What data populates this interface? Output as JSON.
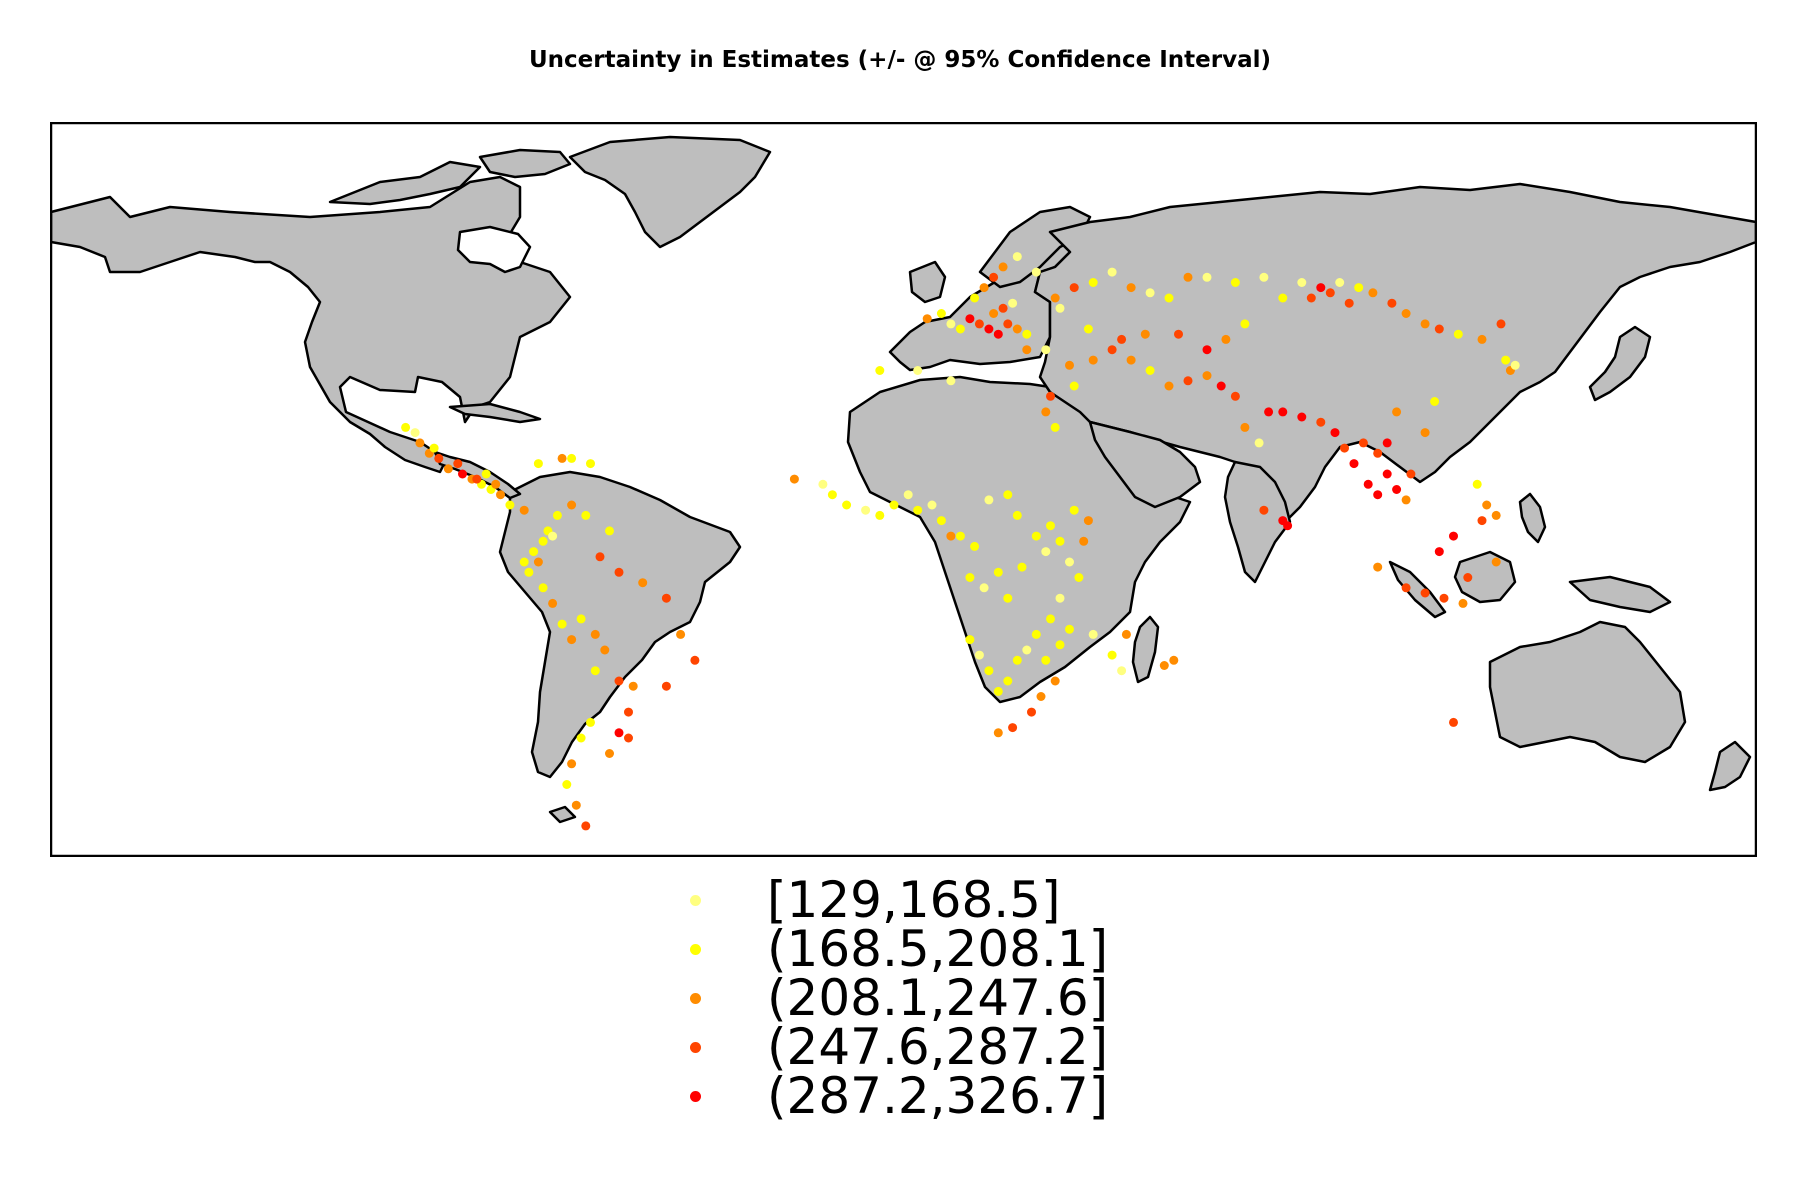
{
  "title": "Uncertainty in Estimates (+/- @ 95% Confidence Interval)",
  "map": {
    "projection": "equirectangular",
    "lon_range": [
      -180,
      180
    ],
    "lat_range": [
      -58,
      84
    ],
    "land_color": "#bebebe",
    "border_color": "#000000",
    "background": "#ffffff"
  },
  "legend": [
    {
      "label": "[129,168.5]",
      "color": "#ffff80"
    },
    {
      "label": "(168.5,208.1]",
      "color": "#ffff00"
    },
    {
      "label": "(208.1,247.6]",
      "color": "#ff8c00"
    },
    {
      "label": "(247.6,287.2]",
      "color": "#ff4500"
    },
    {
      "label": "(287.2,326.7]",
      "color": "#ff0000"
    }
  ],
  "chart_data": {
    "type": "scatter",
    "title": "Uncertainty in Estimates (+/- @ 95% Confidence Interval)",
    "xlabel": "",
    "ylabel": "",
    "x_range": [
      -180,
      180
    ],
    "y_range": [
      -58,
      84
    ],
    "legend_position": "bottom",
    "note_units": "x = longitude (deg), y = latitude (deg), class = legend bin index 0-4",
    "points": [
      [
        -105,
        25,
        1
      ],
      [
        -102,
        22,
        2
      ],
      [
        -100,
        20,
        2
      ],
      [
        -98,
        19,
        3
      ],
      [
        -96,
        17,
        2
      ],
      [
        -93,
        16,
        4
      ],
      [
        -91,
        15,
        2
      ],
      [
        -89,
        14,
        1
      ],
      [
        -87,
        13,
        1
      ],
      [
        -85,
        12,
        2
      ],
      [
        -83,
        10,
        1
      ],
      [
        -80,
        9,
        2
      ],
      [
        -77,
        18,
        1
      ],
      [
        -72,
        19,
        2
      ],
      [
        -70,
        19,
        1
      ],
      [
        -66,
        18,
        1
      ],
      [
        -103,
        24,
        0
      ],
      [
        -99,
        21,
        1
      ],
      [
        -94,
        18,
        3
      ],
      [
        -90,
        15,
        3
      ],
      [
        -88,
        16,
        1
      ],
      [
        -86,
        14,
        2
      ],
      [
        -75,
        5,
        1
      ],
      [
        -74,
        4,
        0
      ],
      [
        -76,
        3,
        1
      ],
      [
        -78,
        1,
        1
      ],
      [
        -77,
        -1,
        2
      ],
      [
        -79,
        -3,
        1
      ],
      [
        -76,
        -6,
        1
      ],
      [
        -74,
        -9,
        2
      ],
      [
        -72,
        -13,
        1
      ],
      [
        -70,
        -16,
        2
      ],
      [
        -68,
        -12,
        1
      ],
      [
        -65,
        -15,
        2
      ],
      [
        -63,
        -18,
        2
      ],
      [
        -65,
        -22,
        1
      ],
      [
        -60,
        -24,
        3
      ],
      [
        -57,
        -25,
        2
      ],
      [
        -58,
        -30,
        3
      ],
      [
        -60,
        -34,
        4
      ],
      [
        -58,
        -35,
        3
      ],
      [
        -62,
        -38,
        2
      ],
      [
        -66,
        -32,
        1
      ],
      [
        -68,
        -35,
        1
      ],
      [
        -70,
        -40,
        2
      ],
      [
        -71,
        -44,
        1
      ],
      [
        -69,
        -48,
        2
      ],
      [
        -67,
        -52,
        3
      ],
      [
        -64,
        0,
        3
      ],
      [
        -60,
        -3,
        3
      ],
      [
        -55,
        -5,
        2
      ],
      [
        -50,
        -8,
        3
      ],
      [
        -47,
        -15,
        2
      ],
      [
        -44,
        -20,
        3
      ],
      [
        -50,
        -25,
        3
      ],
      [
        -62,
        5,
        1
      ],
      [
        -67,
        8,
        1
      ],
      [
        -70,
        10,
        2
      ],
      [
        -73,
        8,
        1
      ],
      [
        -80,
        -1,
        1
      ],
      [
        -23,
        15,
        2
      ],
      [
        -17,
        14,
        0
      ],
      [
        -15,
        12,
        1
      ],
      [
        -12,
        10,
        1
      ],
      [
        -8,
        9,
        0
      ],
      [
        -5,
        8,
        1
      ],
      [
        -2,
        10,
        1
      ],
      [
        1,
        12,
        0
      ],
      [
        3,
        9,
        1
      ],
      [
        6,
        10,
        0
      ],
      [
        8,
        7,
        1
      ],
      [
        10,
        4,
        2
      ],
      [
        12,
        4,
        1
      ],
      [
        15,
        2,
        1
      ],
      [
        14,
        -4,
        1
      ],
      [
        17,
        -6,
        0
      ],
      [
        20,
        -3,
        1
      ],
      [
        22,
        -8,
        1
      ],
      [
        25,
        -2,
        1
      ],
      [
        30,
        1,
        0
      ],
      [
        33,
        3,
        1
      ],
      [
        35,
        -1,
        0
      ],
      [
        37,
        -4,
        1
      ],
      [
        38,
        3,
        2
      ],
      [
        39,
        7,
        2
      ],
      [
        36,
        9,
        1
      ],
      [
        33,
        -8,
        0
      ],
      [
        31,
        -12,
        1
      ],
      [
        28,
        -15,
        1
      ],
      [
        26,
        -18,
        0
      ],
      [
        24,
        -20,
        1
      ],
      [
        22,
        -24,
        1
      ],
      [
        20,
        -26,
        1
      ],
      [
        18,
        -22,
        1
      ],
      [
        16,
        -19,
        0
      ],
      [
        14,
        -16,
        1
      ],
      [
        30,
        -20,
        1
      ],
      [
        32,
        -24,
        2
      ],
      [
        29,
        -27,
        2
      ],
      [
        27,
        -30,
        3
      ],
      [
        23,
        -33,
        3
      ],
      [
        20,
        -34,
        2
      ],
      [
        33,
        -17,
        1
      ],
      [
        35,
        -14,
        1
      ],
      [
        40,
        -15,
        0
      ],
      [
        44,
        -19,
        1
      ],
      [
        47,
        -15,
        2
      ],
      [
        46,
        -22,
        0
      ],
      [
        57,
        -20,
        2
      ],
      [
        55,
        -21,
        2
      ],
      [
        24,
        8,
        1
      ],
      [
        28,
        4,
        1
      ],
      [
        31,
        6,
        1
      ],
      [
        18,
        11,
        0
      ],
      [
        22,
        12,
        1
      ],
      [
        -5,
        36,
        1
      ],
      [
        3,
        36,
        0
      ],
      [
        10,
        34,
        0
      ],
      [
        31,
        31,
        3
      ],
      [
        30,
        28,
        2
      ],
      [
        32,
        25,
        1
      ],
      [
        36,
        33,
        1
      ],
      [
        35,
        37,
        2
      ],
      [
        40,
        38,
        2
      ],
      [
        44,
        40,
        3
      ],
      [
        48,
        38,
        2
      ],
      [
        52,
        36,
        1
      ],
      [
        56,
        33,
        2
      ],
      [
        60,
        34,
        3
      ],
      [
        64,
        35,
        2
      ],
      [
        67,
        33,
        4
      ],
      [
        70,
        31,
        3
      ],
      [
        72,
        25,
        2
      ],
      [
        75,
        22,
        0
      ],
      [
        77,
        28,
        4
      ],
      [
        80,
        28,
        4
      ],
      [
        84,
        27,
        4
      ],
      [
        88,
        26,
        3
      ],
      [
        91,
        24,
        4
      ],
      [
        93,
        21,
        3
      ],
      [
        95,
        18,
        4
      ],
      [
        98,
        14,
        4
      ],
      [
        100,
        12,
        4
      ],
      [
        102,
        16,
        4
      ],
      [
        104,
        13,
        4
      ],
      [
        106,
        11,
        2
      ],
      [
        107,
        16,
        3
      ],
      [
        100,
        20,
        3
      ],
      [
        102,
        22,
        4
      ],
      [
        97,
        22,
        3
      ],
      [
        76,
        9,
        3
      ],
      [
        80,
        7,
        4
      ],
      [
        81,
        6,
        4
      ],
      [
        110,
        24,
        2
      ],
      [
        112,
        30,
        1
      ],
      [
        104,
        28,
        2
      ],
      [
        121,
        14,
        1
      ],
      [
        123,
        10,
        2
      ],
      [
        122,
        7,
        3
      ],
      [
        125,
        8,
        2
      ],
      [
        113,
        1,
        4
      ],
      [
        116,
        4,
        4
      ],
      [
        110,
        -7,
        3
      ],
      [
        114,
        -8,
        3
      ],
      [
        118,
        -9,
        2
      ],
      [
        106,
        -6,
        3
      ],
      [
        100,
        -2,
        2
      ],
      [
        119,
        -4,
        3
      ],
      [
        125,
        -1,
        2
      ],
      [
        116,
        -32,
        3
      ],
      [
        128,
        36,
        2
      ],
      [
        127,
        38,
        1
      ],
      [
        129,
        37,
        0
      ],
      [
        5,
        46,
        2
      ],
      [
        8,
        47,
        1
      ],
      [
        10,
        45,
        0
      ],
      [
        12,
        44,
        1
      ],
      [
        14,
        46,
        4
      ],
      [
        16,
        45,
        3
      ],
      [
        18,
        44,
        4
      ],
      [
        20,
        43,
        4
      ],
      [
        22,
        45,
        3
      ],
      [
        24,
        44,
        2
      ],
      [
        26,
        43,
        1
      ],
      [
        19,
        47,
        2
      ],
      [
        21,
        48,
        3
      ],
      [
        23,
        49,
        0
      ],
      [
        15,
        50,
        1
      ],
      [
        17,
        52,
        2
      ],
      [
        19,
        54,
        3
      ],
      [
        21,
        56,
        2
      ],
      [
        24,
        58,
        0
      ],
      [
        28,
        55,
        0
      ],
      [
        32,
        50,
        2
      ],
      [
        36,
        52,
        3
      ],
      [
        40,
        53,
        1
      ],
      [
        44,
        55,
        0
      ],
      [
        48,
        52,
        2
      ],
      [
        52,
        51,
        0
      ],
      [
        56,
        50,
        1
      ],
      [
        60,
        54,
        2
      ],
      [
        64,
        54,
        0
      ],
      [
        70,
        53,
        1
      ],
      [
        76,
        54,
        0
      ],
      [
        80,
        50,
        1
      ],
      [
        84,
        53,
        0
      ],
      [
        86,
        50,
        3
      ],
      [
        88,
        52,
        4
      ],
      [
        90,
        51,
        3
      ],
      [
        92,
        53,
        0
      ],
      [
        94,
        49,
        3
      ],
      [
        96,
        52,
        1
      ],
      [
        99,
        51,
        2
      ],
      [
        103,
        49,
        3
      ],
      [
        106,
        47,
        2
      ],
      [
        110,
        45,
        2
      ],
      [
        113,
        44,
        3
      ],
      [
        117,
        43,
        1
      ],
      [
        122,
        42,
        2
      ],
      [
        126,
        45,
        3
      ],
      [
        72,
        45,
        1
      ],
      [
        68,
        42,
        2
      ],
      [
        64,
        40,
        4
      ],
      [
        58,
        43,
        3
      ],
      [
        46,
        42,
        3
      ],
      [
        51,
        43,
        2
      ],
      [
        39,
        44,
        1
      ],
      [
        30,
        40,
        0
      ],
      [
        26,
        40,
        2
      ],
      [
        33,
        48,
        0
      ]
    ]
  }
}
